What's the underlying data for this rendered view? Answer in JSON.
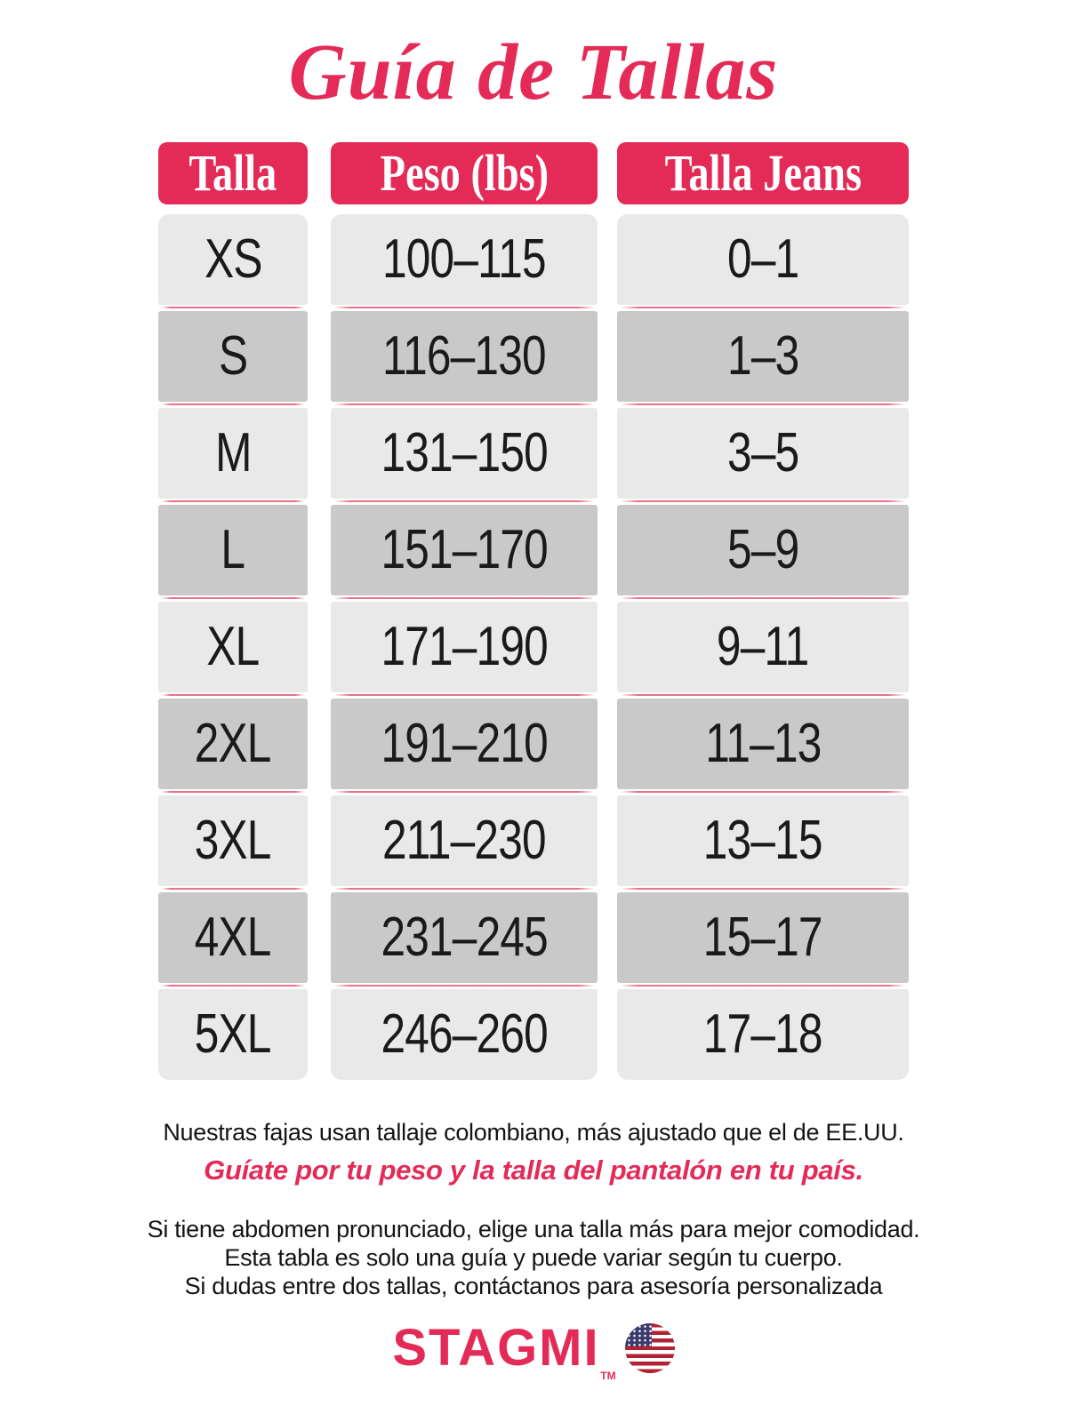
{
  "title": "Guía de Tallas",
  "table": {
    "headers": [
      "Talla",
      "Peso (lbs)",
      "Talla Jeans"
    ],
    "rows": [
      {
        "talla": "XS",
        "peso": "100–115",
        "jeans": "0–1"
      },
      {
        "talla": "S",
        "peso": "116–130",
        "jeans": "1–3"
      },
      {
        "talla": "M",
        "peso": "131–150",
        "jeans": "3–5"
      },
      {
        "talla": "L",
        "peso": "151–170",
        "jeans": "5–9"
      },
      {
        "talla": "XL",
        "peso": "171–190",
        "jeans": "9–11"
      },
      {
        "talla": "2XL",
        "peso": "191–210",
        "jeans": "11–13"
      },
      {
        "talla": "3XL",
        "peso": "211–230",
        "jeans": "13–15"
      },
      {
        "talla": "4XL",
        "peso": "231–245",
        "jeans": "15–17"
      },
      {
        "talla": "5XL",
        "peso": "246–260",
        "jeans": "17–18"
      }
    ]
  },
  "notes": {
    "line1": "Nuestras fajas usan tallaje colombiano, más ajustado que el de EE.UU.",
    "line2": "Guíate por tu peso y la talla del pantalón en tu país.",
    "line3": "Si tiene abdomen pronunciado, elige una talla más para mejor comodidad.",
    "line4": "Esta tabla es solo una guía y puede variar según tu cuerpo.",
    "line5": "Si dudas entre dos tallas, contáctanos para asesoría personalizada"
  },
  "brand": {
    "name": "STAGMI",
    "trademark": "TM",
    "flag_icon": "us-flag-icon"
  },
  "colors": {
    "accent_pink": "#E42B58",
    "row_light": "#E9E9E9",
    "row_dark": "#C9C9C9",
    "separator_pink": "#E9627E",
    "flag_red": "#B22234",
    "flag_blue": "#3C3B6E"
  }
}
